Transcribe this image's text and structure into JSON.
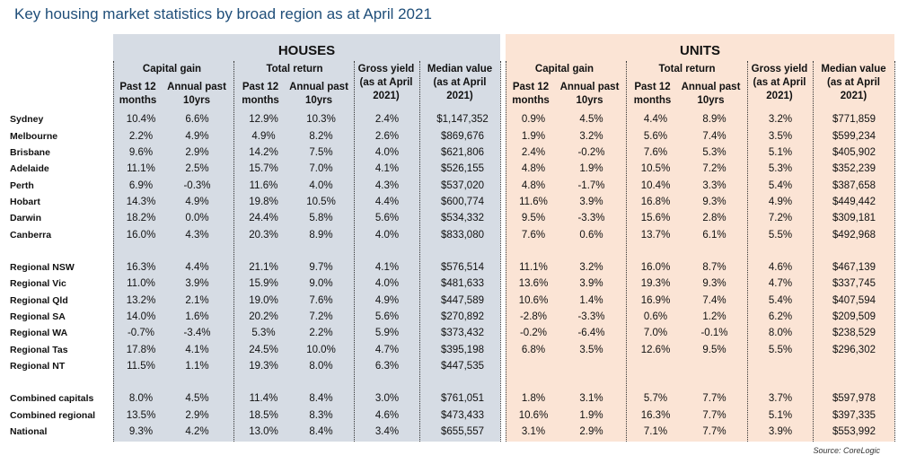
{
  "title": "Key housing market statistics by broad region as at April 2021",
  "source": "Source:  CoreLogic",
  "colors": {
    "title": "#1f4e79",
    "houses_bg": "#d6dce4",
    "units_bg": "#fbe4d5"
  },
  "headers": {
    "houses": "HOUSES",
    "units": "UNITS",
    "capital_gain": "Capital gain",
    "total_return": "Total return",
    "past12_l1": "Past 12",
    "past12_l2": "months",
    "annual_l1": "Annual past",
    "annual_l2": "10yrs",
    "gross_l1": "Gross yield",
    "gross_l2": "(as at April",
    "gross_l3": "2021)",
    "median_l1": "Median value",
    "median_l2": "(as at April",
    "median_l3": "2021)"
  },
  "chart_data": {
    "type": "table",
    "title": "Key housing market statistics by broad region as at April 2021",
    "columns": [
      "Houses capital gain past 12 months",
      "Houses capital gain annual past 10yrs",
      "Houses total return past 12 months",
      "Houses total return annual past 10yrs",
      "Houses gross yield",
      "Houses median value",
      "Units capital gain past 12 months",
      "Units capital gain annual past 10yrs",
      "Units total return past 12 months",
      "Units total return annual past 10yrs",
      "Units gross yield",
      "Units median value"
    ],
    "rows": [
      {
        "region": "Sydney",
        "cells": [
          "10.4%",
          "6.6%",
          "12.9%",
          "10.3%",
          "2.4%",
          "$1,147,352",
          "0.9%",
          "4.5%",
          "4.4%",
          "8.9%",
          "3.2%",
          "$771,859"
        ]
      },
      {
        "region": "Melbourne",
        "cells": [
          "2.2%",
          "4.9%",
          "4.9%",
          "8.2%",
          "2.6%",
          "$869,676",
          "1.9%",
          "3.2%",
          "5.6%",
          "7.4%",
          "3.5%",
          "$599,234"
        ]
      },
      {
        "region": "Brisbane",
        "cells": [
          "9.6%",
          "2.9%",
          "14.2%",
          "7.5%",
          "4.0%",
          "$621,806",
          "2.4%",
          "-0.2%",
          "7.6%",
          "5.3%",
          "5.1%",
          "$405,902"
        ]
      },
      {
        "region": "Adelaide",
        "cells": [
          "11.1%",
          "2.5%",
          "15.7%",
          "7.0%",
          "4.1%",
          "$526,155",
          "4.8%",
          "1.9%",
          "10.5%",
          "7.2%",
          "5.3%",
          "$352,239"
        ]
      },
      {
        "region": "Perth",
        "cells": [
          "6.9%",
          "-0.3%",
          "11.6%",
          "4.0%",
          "4.3%",
          "$537,020",
          "4.8%",
          "-1.7%",
          "10.4%",
          "3.3%",
          "5.4%",
          "$387,658"
        ]
      },
      {
        "region": "Hobart",
        "cells": [
          "14.3%",
          "4.9%",
          "19.8%",
          "10.5%",
          "4.4%",
          "$600,774",
          "11.6%",
          "3.9%",
          "16.8%",
          "9.3%",
          "4.9%",
          "$449,442"
        ]
      },
      {
        "region": "Darwin",
        "cells": [
          "18.2%",
          "0.0%",
          "24.4%",
          "5.8%",
          "5.6%",
          "$534,332",
          "9.5%",
          "-3.3%",
          "15.6%",
          "2.8%",
          "7.2%",
          "$309,181"
        ]
      },
      {
        "region": "Canberra",
        "cells": [
          "16.0%",
          "4.3%",
          "20.3%",
          "8.9%",
          "4.0%",
          "$833,080",
          "7.6%",
          "0.6%",
          "13.7%",
          "6.1%",
          "5.5%",
          "$492,968"
        ]
      },
      {
        "region": "Regional NSW",
        "cells": [
          "16.3%",
          "4.4%",
          "21.1%",
          "9.7%",
          "4.1%",
          "$576,514",
          "11.1%",
          "3.2%",
          "16.0%",
          "8.7%",
          "4.6%",
          "$467,139"
        ]
      },
      {
        "region": "Regional Vic",
        "cells": [
          "11.0%",
          "3.9%",
          "15.9%",
          "9.0%",
          "4.0%",
          "$481,633",
          "13.6%",
          "3.9%",
          "19.3%",
          "9.3%",
          "4.7%",
          "$337,745"
        ]
      },
      {
        "region": "Regional Qld",
        "cells": [
          "13.2%",
          "2.1%",
          "19.0%",
          "7.6%",
          "4.9%",
          "$447,589",
          "10.6%",
          "1.4%",
          "16.9%",
          "7.4%",
          "5.4%",
          "$407,594"
        ]
      },
      {
        "region": "Regional SA",
        "cells": [
          "14.0%",
          "1.6%",
          "20.2%",
          "7.2%",
          "5.6%",
          "$270,892",
          "-2.8%",
          "-3.3%",
          "0.6%",
          "1.2%",
          "6.2%",
          "$209,509"
        ]
      },
      {
        "region": "Regional WA",
        "cells": [
          "-0.7%",
          "-3.4%",
          "5.3%",
          "2.2%",
          "5.9%",
          "$373,432",
          "-0.2%",
          "-6.4%",
          "7.0%",
          "-0.1%",
          "8.0%",
          "$238,529"
        ]
      },
      {
        "region": "Regional Tas",
        "cells": [
          "17.8%",
          "4.1%",
          "24.5%",
          "10.0%",
          "4.7%",
          "$395,198",
          "6.8%",
          "3.5%",
          "12.6%",
          "9.5%",
          "5.5%",
          "$296,302"
        ]
      },
      {
        "region": "Regional NT",
        "cells": [
          "11.5%",
          "1.1%",
          "19.3%",
          "8.0%",
          "6.3%",
          "$447,535",
          "",
          "",
          "",
          "",
          "",
          ""
        ]
      },
      {
        "region": "Combined capitals",
        "cells": [
          "8.0%",
          "4.5%",
          "11.4%",
          "8.4%",
          "3.0%",
          "$761,051",
          "1.8%",
          "3.1%",
          "5.7%",
          "7.7%",
          "3.7%",
          "$597,978"
        ]
      },
      {
        "region": "Combined regional",
        "cells": [
          "13.5%",
          "2.9%",
          "18.5%",
          "8.3%",
          "4.6%",
          "$473,433",
          "10.6%",
          "1.9%",
          "16.3%",
          "7.7%",
          "5.1%",
          "$397,335"
        ]
      },
      {
        "region": "National",
        "cells": [
          "9.3%",
          "4.2%",
          "13.0%",
          "8.4%",
          "3.4%",
          "$655,557",
          "3.1%",
          "2.9%",
          "7.1%",
          "7.7%",
          "3.9%",
          "$553,992"
        ]
      }
    ]
  }
}
